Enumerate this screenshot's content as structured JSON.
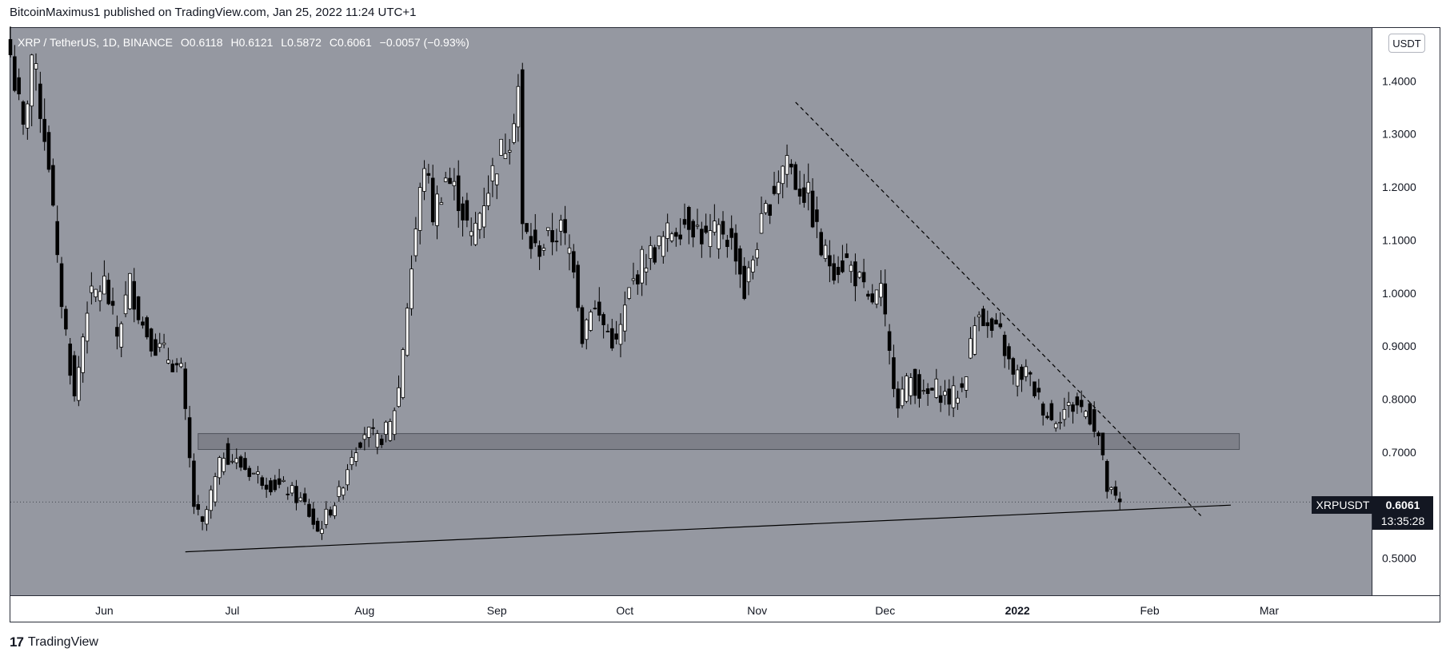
{
  "header": {
    "publisher_line": "BitcoinMaximus1 published on TradingView.com, Jan 25, 2022 11:24 UTC+1"
  },
  "legend": {
    "symbol": "XRP / TetherUS, 1D, BINANCE",
    "o_label": "O",
    "o_value": "0.6118",
    "h_label": "H",
    "h_value": "0.6121",
    "l_label": "L",
    "l_value": "0.5872",
    "c_label": "C",
    "c_value": "0.6061",
    "change": "−0.0057 (−0.93%)"
  },
  "price_scale": {
    "unit": "USDT"
  },
  "last_price": {
    "symbol": "XRPUSDT",
    "price": "0.6061",
    "countdown": "13:35:28"
  },
  "footer": {
    "brand": "TradingView"
  },
  "colors": {
    "plot_bg": "#9598a1",
    "candle_up": "#ffffff",
    "candle_down": "#000000",
    "zone": "#6b6e76"
  },
  "chart_data": {
    "type": "candlestick",
    "title": "XRP / TetherUS, 1D, BINANCE",
    "xlabel": "",
    "ylabel": "",
    "ylim": [
      0.43,
      1.5
    ],
    "y_ticks": [
      "1.4000",
      "1.3000",
      "1.2000",
      "1.1000",
      "1.0000",
      "0.9000",
      "0.8000",
      "0.7000",
      "0.5000"
    ],
    "x_ticks": [
      "Jun",
      "Jul",
      "Aug",
      "Sep",
      "Oct",
      "Nov",
      "Dec",
      "2022",
      "Feb",
      "Mar"
    ],
    "x_start": "2021-05-10",
    "x_end": "2022-03-25",
    "close_path": [
      [
        "2021-05-10",
        1.45
      ],
      [
        "2021-05-13",
        1.3
      ],
      [
        "2021-05-15",
        1.45
      ],
      [
        "2021-05-19",
        1.25
      ],
      [
        "2021-05-21",
        1.05
      ],
      [
        "2021-05-25",
        0.8
      ],
      [
        "2021-05-28",
        0.98
      ],
      [
        "2021-06-01",
        1.02
      ],
      [
        "2021-06-04",
        0.92
      ],
      [
        "2021-06-07",
        1.02
      ],
      [
        "2021-06-10",
        0.94
      ],
      [
        "2021-06-13",
        0.9
      ],
      [
        "2021-06-16",
        0.88
      ],
      [
        "2021-06-19",
        0.85
      ],
      [
        "2021-06-22",
        0.6
      ],
      [
        "2021-06-24",
        0.56
      ],
      [
        "2021-06-26",
        0.62
      ],
      [
        "2021-06-29",
        0.7
      ],
      [
        "2021-07-02",
        0.68
      ],
      [
        "2021-07-06",
        0.66
      ],
      [
        "2021-07-10",
        0.64
      ],
      [
        "2021-07-14",
        0.63
      ],
      [
        "2021-07-18",
        0.6
      ],
      [
        "2021-07-21",
        0.55
      ],
      [
        "2021-07-23",
        0.58
      ],
      [
        "2021-07-26",
        0.62
      ],
      [
        "2021-07-29",
        0.7
      ],
      [
        "2021-08-01",
        0.74
      ],
      [
        "2021-08-04",
        0.72
      ],
      [
        "2021-08-07",
        0.75
      ],
      [
        "2021-08-09",
        0.82
      ],
      [
        "2021-08-11",
        0.98
      ],
      [
        "2021-08-13",
        1.12
      ],
      [
        "2021-08-15",
        1.25
      ],
      [
        "2021-08-17",
        1.15
      ],
      [
        "2021-08-20",
        1.22
      ],
      [
        "2021-08-23",
        1.18
      ],
      [
        "2021-08-26",
        1.1
      ],
      [
        "2021-08-29",
        1.18
      ],
      [
        "2021-09-01",
        1.25
      ],
      [
        "2021-09-04",
        1.3
      ],
      [
        "2021-09-06",
        1.39
      ],
      [
        "2021-09-07",
        1.12
      ],
      [
        "2021-09-10",
        1.08
      ],
      [
        "2021-09-13",
        1.1
      ],
      [
        "2021-09-16",
        1.12
      ],
      [
        "2021-09-19",
        1.06
      ],
      [
        "2021-09-21",
        0.92
      ],
      [
        "2021-09-23",
        0.98
      ],
      [
        "2021-09-26",
        0.94
      ],
      [
        "2021-09-29",
        0.9
      ],
      [
        "2021-10-02",
        1.0
      ],
      [
        "2021-10-05",
        1.06
      ],
      [
        "2021-10-08",
        1.08
      ],
      [
        "2021-10-12",
        1.12
      ],
      [
        "2021-10-16",
        1.14
      ],
      [
        "2021-10-20",
        1.1
      ],
      [
        "2021-10-24",
        1.12
      ],
      [
        "2021-10-27",
        1.08
      ],
      [
        "2021-10-29",
        1.0
      ],
      [
        "2021-11-01",
        1.1
      ],
      [
        "2021-11-05",
        1.2
      ],
      [
        "2021-11-08",
        1.26
      ],
      [
        "2021-11-10",
        1.21
      ],
      [
        "2021-11-13",
        1.18
      ],
      [
        "2021-11-16",
        1.08
      ],
      [
        "2021-11-19",
        1.05
      ],
      [
        "2021-11-22",
        1.06
      ],
      [
        "2021-11-25",
        1.02
      ],
      [
        "2021-11-27",
        0.98
      ],
      [
        "2021-11-30",
        1.0
      ],
      [
        "2021-12-02",
        0.88
      ],
      [
        "2021-12-04",
        0.8
      ],
      [
        "2021-12-07",
        0.84
      ],
      [
        "2021-12-10",
        0.8
      ],
      [
        "2021-12-13",
        0.82
      ],
      [
        "2021-12-16",
        0.8
      ],
      [
        "2021-12-19",
        0.82
      ],
      [
        "2021-12-21",
        0.9
      ],
      [
        "2021-12-23",
        0.98
      ],
      [
        "2021-12-25",
        0.93
      ],
      [
        "2021-12-28",
        0.92
      ],
      [
        "2021-12-31",
        0.84
      ],
      [
        "2022-01-03",
        0.85
      ],
      [
        "2022-01-06",
        0.8
      ],
      [
        "2022-01-09",
        0.76
      ],
      [
        "2022-01-12",
        0.78
      ],
      [
        "2022-01-15",
        0.79
      ],
      [
        "2022-01-18",
        0.77
      ],
      [
        "2022-01-20",
        0.73
      ],
      [
        "2022-01-22",
        0.63
      ],
      [
        "2022-01-24",
        0.61
      ],
      [
        "2022-01-25",
        0.6061
      ]
    ],
    "annotations": [
      {
        "type": "descending_resistance",
        "style": "dashed",
        "from": [
          "2021-11-10",
          1.36
        ],
        "to": [
          "2022-02-13",
          0.58
        ]
      },
      {
        "type": "ascending_support",
        "style": "solid",
        "from": [
          "2021-06-20",
          0.512
        ],
        "to": [
          "2022-02-20",
          0.6
        ]
      },
      {
        "type": "horizontal_zone",
        "from_date": "2021-06-23",
        "to_date": "2022-02-22",
        "y_range": [
          0.705,
          0.735
        ]
      }
    ]
  }
}
